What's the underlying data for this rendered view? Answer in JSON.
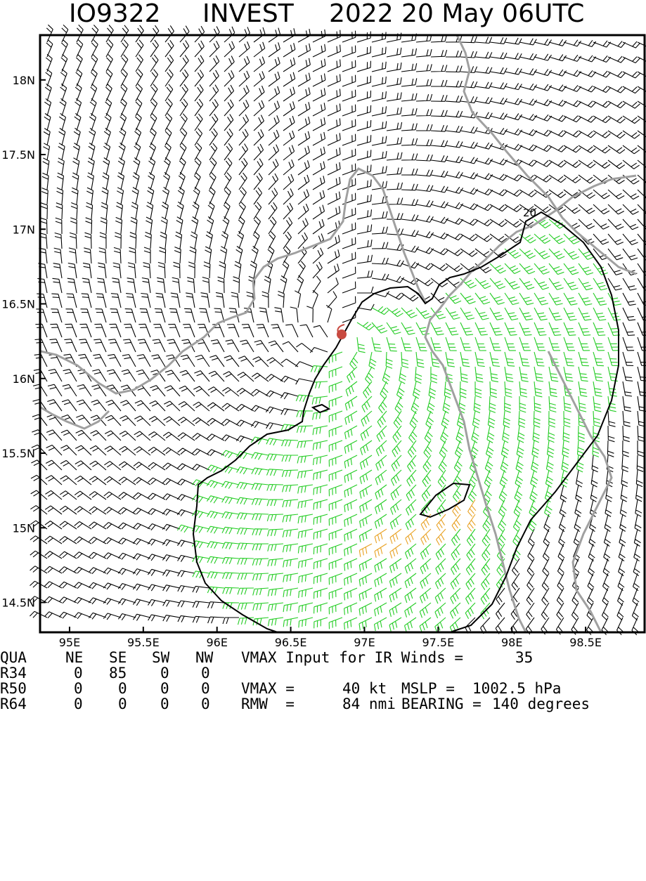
{
  "title": {
    "storm_id": "IO9322",
    "storm_name": "INVEST",
    "datetime": "2022 20 May 06UTC"
  },
  "map": {
    "lat_labels": [
      "18N",
      "17.5N",
      "17N",
      "16.5N",
      "16N",
      "15.5N",
      "15N",
      "14.5N"
    ],
    "lon_labels": [
      "95E",
      "95.5E",
      "96E",
      "96.5E",
      "97E",
      "97.5E",
      "98E",
      "98.5E"
    ],
    "lat_range": [
      14.3,
      18.3
    ],
    "lon_range": [
      94.8,
      98.9
    ],
    "center": {
      "lat": 16.3,
      "lon": 96.85
    },
    "contour_label": "20",
    "colors": {
      "barb_default": "#000000",
      "barb_34kt": "#22cc22",
      "barb_50kt": "#e8a020",
      "coastline": "#a0a0a0",
      "contour": "#000000",
      "center_marker": "#c84a40"
    }
  },
  "table": {
    "header": [
      "QUA",
      "NE",
      "SE",
      "SW",
      "NW"
    ],
    "rows": [
      {
        "label": "R34",
        "values": [
          "0",
          "85",
          "0",
          "0"
        ]
      },
      {
        "label": "R50",
        "values": [
          "0",
          "0",
          "0",
          "0"
        ]
      },
      {
        "label": "R64",
        "values": [
          "0",
          "0",
          "0",
          "0"
        ]
      }
    ]
  },
  "info": {
    "vmax_input_label": "VMAX Input for IR Winds =",
    "vmax_input_value": "35",
    "vmax_label": "VMAX =",
    "vmax_value": "40 kt",
    "mslp_label": "MSLP =",
    "mslp_value": "1002.5 hPa",
    "rmw_label": "RMW  =",
    "rmw_value": "84 nmi",
    "bearing_label": "BEARING =",
    "bearing_value": "140 degrees"
  }
}
